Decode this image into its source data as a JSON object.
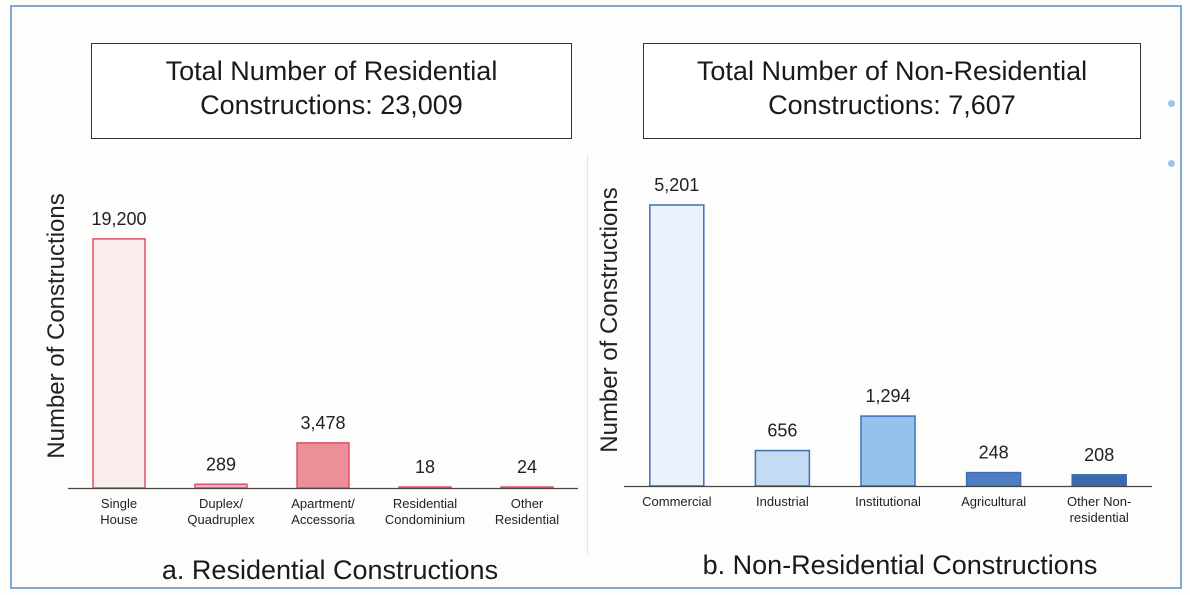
{
  "panels": [
    {
      "title_line1": "Total Number of Residential",
      "title_line2": "Constructions: 23,009",
      "caption": "a. Residential Constructions"
    },
    {
      "title_line1": "Total Number of Non-Residential",
      "title_line2": "Constructions: 7,607",
      "caption": "b. Non-Residential Constructions"
    }
  ],
  "chart_data": [
    {
      "type": "bar",
      "title": "Total Number of Residential Constructions: 23,009",
      "ylabel": "Number of Constructions",
      "xlabel": "",
      "categories": [
        "Single House",
        "Duplex/ Quadruplex",
        "Apartment/ Accessoria",
        "Residential Condominium",
        "Other Residential"
      ],
      "category_lines": [
        [
          "Single",
          "House"
        ],
        [
          "Duplex/",
          "Quadruplex"
        ],
        [
          "Apartment/",
          "Accessoria"
        ],
        [
          "Residential",
          "Condominium"
        ],
        [
          "Other",
          "Residential"
        ]
      ],
      "values": [
        19200,
        289,
        3478,
        18,
        24
      ],
      "value_labels": [
        "19,200",
        "289",
        "3,478",
        "18",
        "24"
      ],
      "colors": [
        "#fbecec",
        "#f4b6bc",
        "#ec8f98",
        "#e9707c",
        "#e05a68"
      ],
      "stroke": "#e0506a",
      "ylim": [
        0,
        20500
      ],
      "grid": false
    },
    {
      "type": "bar",
      "title": "Total Number of Non-Residential Constructions: 7,607",
      "ylabel": "Number of Constructions",
      "xlabel": "",
      "categories": [
        "Commercial",
        "Industrial",
        "Institutional",
        "Agricultural",
        "Other Non-residential"
      ],
      "category_lines": [
        [
          "Commercial"
        ],
        [
          "Industrial"
        ],
        [
          "Institutional"
        ],
        [
          "Agricultural"
        ],
        [
          "Other Non-",
          "residential"
        ]
      ],
      "values": [
        5201,
        656,
        1294,
        248,
        208
      ],
      "value_labels": [
        "5,201",
        "656",
        "1,294",
        "248",
        "208"
      ],
      "colors": [
        "#eaf2fb",
        "#c4dcf3",
        "#93c2ec",
        "#4f7fc2",
        "#3c68ad"
      ],
      "stroke": "#3f6fb5",
      "ylim": [
        0,
        5201
      ],
      "grid": false
    }
  ]
}
